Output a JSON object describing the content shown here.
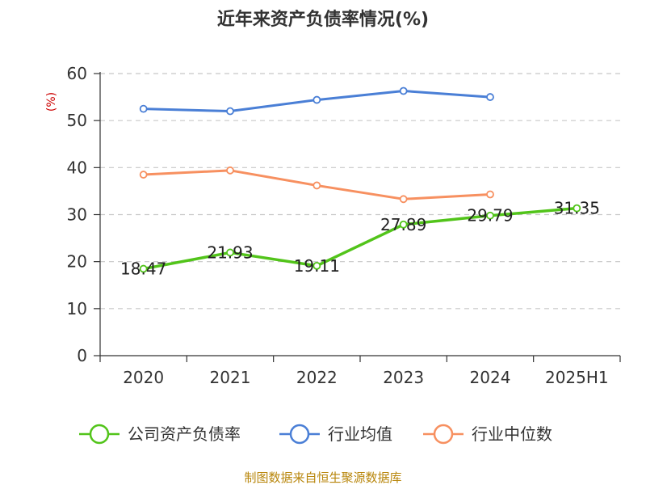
{
  "chart_data": {
    "type": "line",
    "title": "近年来资产负债率情况(%)",
    "ylabel": "(%)",
    "xlabel": "",
    "ylim": [
      0,
      60
    ],
    "yticks": [
      0,
      10,
      20,
      30,
      40,
      50,
      60
    ],
    "grid": true,
    "legend_position": "bottom",
    "categories": [
      "2020",
      "2021",
      "2022",
      "2023",
      "2024",
      "2025H1"
    ],
    "series": [
      {
        "name": "公司资产负债率",
        "color": "#52c41a",
        "show_labels": true,
        "values": [
          18.47,
          21.93,
          19.11,
          27.89,
          29.79,
          31.35
        ]
      },
      {
        "name": "行业均值",
        "color": "#4a7fd6",
        "show_labels": false,
        "values": [
          52.5,
          52.0,
          54.4,
          56.3,
          55.0,
          null
        ]
      },
      {
        "name": "行业中位数",
        "color": "#f79060",
        "show_labels": false,
        "values": [
          38.5,
          39.4,
          36.2,
          33.3,
          34.3,
          null
        ]
      }
    ],
    "source": "制图数据来自恒生聚源数据库"
  }
}
